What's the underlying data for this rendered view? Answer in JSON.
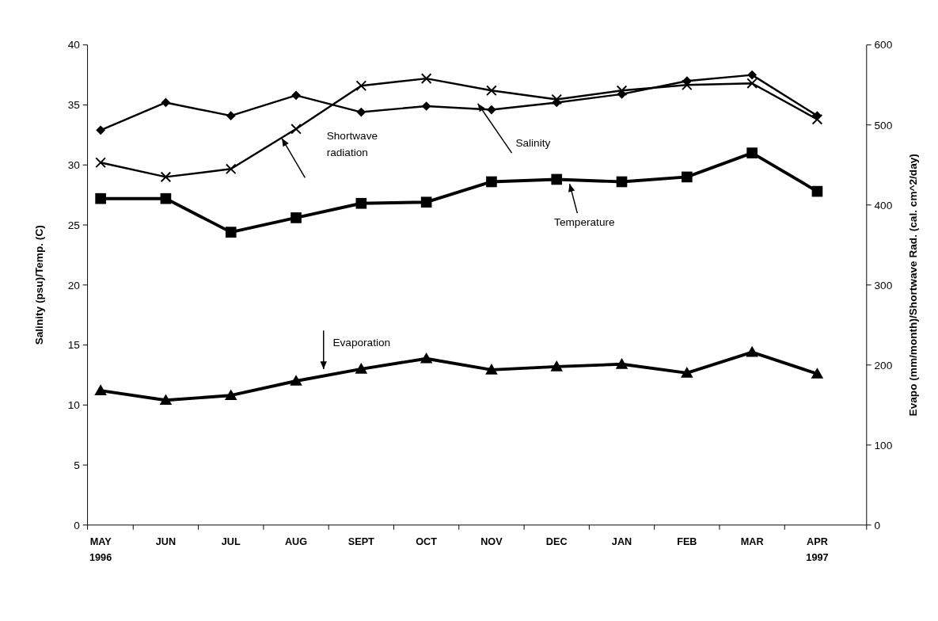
{
  "chart_data": {
    "type": "line",
    "ylabel": "Salinity (psu)/Temp. (C)",
    "y2label": "Evapo (mm/month)/Shortwave Rad. (cal. cm^2/day)",
    "categories": [
      "MAY\n1996",
      "JUN",
      "JUL",
      "AUG",
      "SEPT",
      "OCT",
      "NOV",
      "DEC",
      "JAN",
      "FEB",
      "MAR",
      "APR\n1997"
    ],
    "ylim": [
      0,
      40
    ],
    "yticks": [
      0,
      5,
      10,
      15,
      20,
      25,
      30,
      35,
      40
    ],
    "y2lim": [
      0,
      600
    ],
    "y2ticks": [
      0,
      100,
      200,
      300,
      400,
      500,
      600
    ],
    "grid": false,
    "series": [
      {
        "name": "Salinity",
        "color": "#000000",
        "marker": "diamond",
        "values": [
          32.9,
          35.2,
          34.1,
          35.8,
          34.4,
          34.9,
          34.6,
          35.2,
          35.9,
          37.0,
          37.5,
          34.1
        ]
      },
      {
        "name": "Shortwave radiation",
        "color": "#000000",
        "marker": "cross",
        "axis": "y2",
        "values": [
          453,
          435,
          445,
          495,
          549,
          558,
          543,
          532,
          543,
          550,
          552,
          507
        ]
      },
      {
        "name": "Temperature",
        "color": "#000000",
        "marker": "square",
        "values": [
          27.2,
          27.2,
          24.4,
          25.6,
          26.8,
          26.9,
          28.6,
          28.8,
          28.6,
          29.0,
          31.0,
          27.8
        ]
      },
      {
        "name": "Evaporation",
        "color": "#000000",
        "marker": "triangle",
        "axis": "y2",
        "values": [
          168,
          156,
          162,
          180,
          195,
          208,
          194,
          198,
          201,
          190,
          216,
          189
        ]
      }
    ]
  }
}
